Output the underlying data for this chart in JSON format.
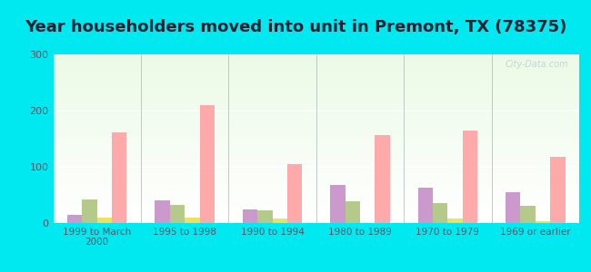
{
  "title": "Year householders moved into unit in Premont, TX (78375)",
  "categories": [
    "1999 to March\n2000",
    "1995 to 1998",
    "1990 to 1994",
    "1980 to 1989",
    "1970 to 1979",
    "1969 or earlier"
  ],
  "series": {
    "White Non-Hispanic": [
      15,
      40,
      25,
      68,
      63,
      55
    ],
    "Other Race": [
      42,
      32,
      22,
      38,
      35,
      30
    ],
    "Two or More Races": [
      9,
      9,
      8,
      0,
      8,
      4
    ],
    "Hispanic or Latino": [
      162,
      210,
      105,
      157,
      165,
      118
    ]
  },
  "colors": {
    "White Non-Hispanic": "#cc99cc",
    "Other Race": "#b5c98a",
    "Two or More Races": "#f0e060",
    "Hispanic or Latino": "#ffaaaa"
  },
  "legend_colors": {
    "White Non-Hispanic": "#ddaadd",
    "Other Race": "#ccdd99",
    "Two or More Races": "#f5f077",
    "Hispanic or Latino": "#ffbbbb"
  },
  "ylim": [
    0,
    300
  ],
  "yticks": [
    0,
    100,
    200,
    300
  ],
  "outer_background": "#00e8f0",
  "title_fontsize": 13,
  "bar_width": 0.17,
  "watermark": "City-Data.com"
}
